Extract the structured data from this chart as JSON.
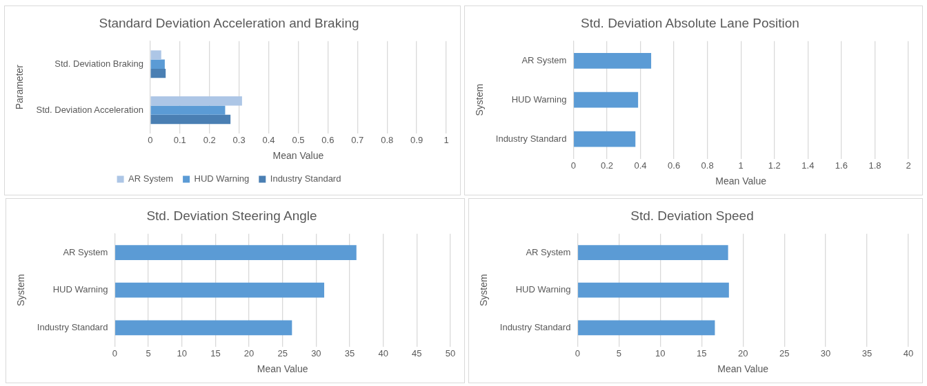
{
  "chart_data": [
    {
      "type": "bar",
      "orientation": "horizontal",
      "title": "Standard Deviation Acceleration and Braking",
      "xlabel": "Mean Value",
      "ylabel": "Parameter",
      "categories": [
        "Std. Deviation Braking",
        "Std. Deviation Acceleration"
      ],
      "series": [
        {
          "name": "AR System",
          "color": "#adc6e6",
          "values": [
            0.037,
            0.31
          ]
        },
        {
          "name": "HUD Warning",
          "color": "#5b9bd5",
          "values": [
            0.049,
            0.253
          ]
        },
        {
          "name": "Industry Standard",
          "color": "#4a7fb3",
          "values": [
            0.052,
            0.271
          ]
        }
      ],
      "xlim": [
        0,
        1
      ],
      "xticks": [
        0,
        0.1,
        0.2,
        0.3,
        0.4,
        0.5,
        0.6,
        0.7,
        0.8,
        0.9,
        1
      ],
      "grid": "x",
      "legend": "bottom"
    },
    {
      "type": "bar",
      "orientation": "horizontal",
      "title": "Std. Deviation Absolute Lane Position",
      "xlabel": "Mean Value",
      "ylabel": "System",
      "categories": [
        "AR System",
        "HUD Warning",
        "Industry Standard"
      ],
      "series": [
        {
          "color": "#5b9bd5",
          "values": [
            0.464,
            0.386,
            0.37
          ]
        }
      ],
      "xlim": [
        0,
        2
      ],
      "xticks": [
        0,
        0.2,
        0.4,
        0.6,
        0.8,
        1,
        1.2,
        1.4,
        1.6,
        1.8,
        2
      ],
      "grid": "x"
    },
    {
      "type": "bar",
      "orientation": "horizontal",
      "title": "Std. Deviation Steering Angle",
      "xlabel": "Mean Value",
      "ylabel": "System",
      "categories": [
        "AR System",
        "HUD Warning",
        "Industry Standard"
      ],
      "series": [
        {
          "color": "#5b9bd5",
          "values": [
            36.0,
            31.2,
            26.4
          ]
        }
      ],
      "xlim": [
        0,
        50
      ],
      "xticks": [
        0,
        5,
        10,
        15,
        20,
        25,
        30,
        35,
        40,
        45,
        50
      ],
      "grid": "x"
    },
    {
      "type": "bar",
      "orientation": "horizontal",
      "title": "Std. Deviation Speed",
      "xlabel": "Mean Value",
      "ylabel": "System",
      "categories": [
        "AR System",
        "HUD Warning",
        "Industry Standard"
      ],
      "series": [
        {
          "color": "#5b9bd5",
          "values": [
            18.2,
            18.3,
            16.6
          ]
        }
      ],
      "xlim": [
        0,
        40
      ],
      "xticks": [
        0,
        5,
        10,
        15,
        20,
        25,
        30,
        35,
        40
      ],
      "grid": "x"
    }
  ]
}
